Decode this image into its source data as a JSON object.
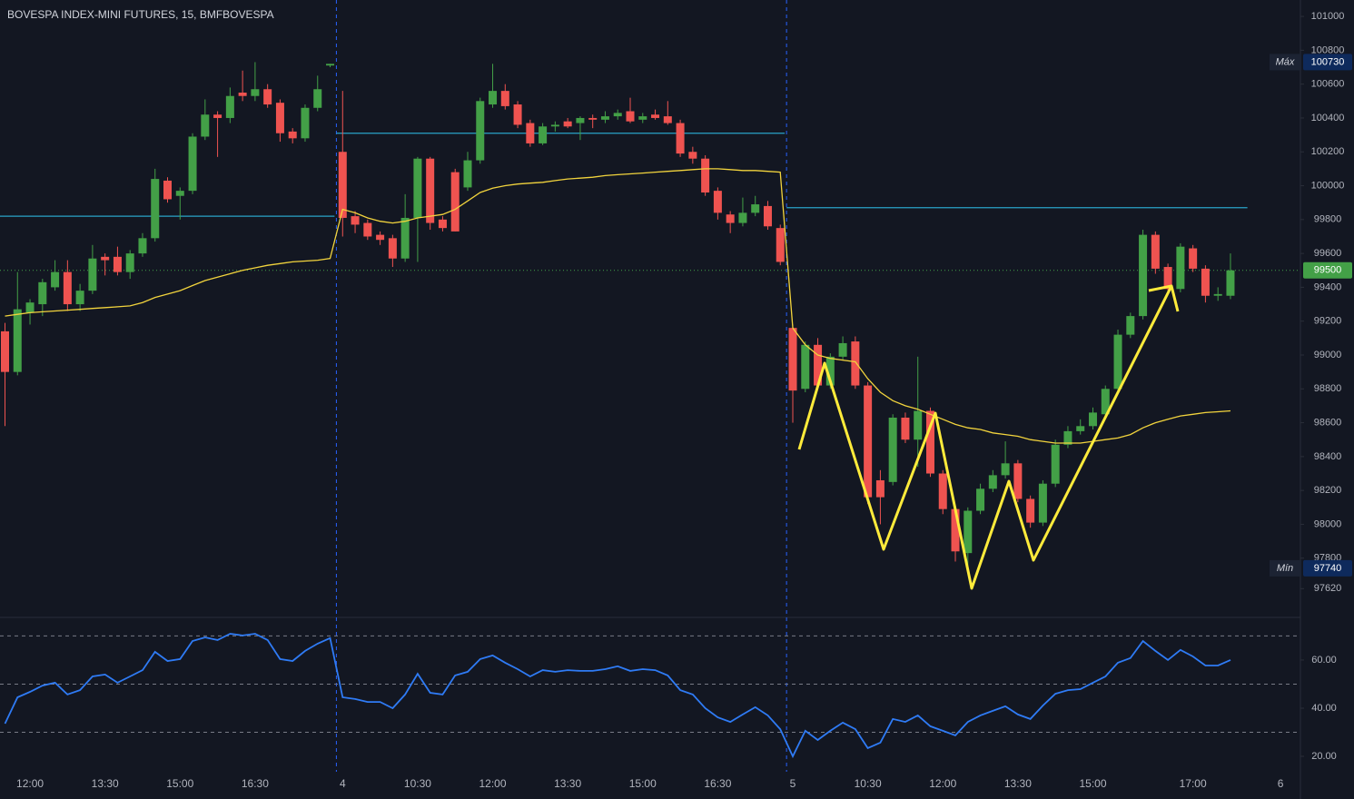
{
  "chart_data": {
    "type": "candlestick",
    "title": "BOVESPA INDEX-MINI FUTURES, 15, BMFBOVESPA",
    "categories": [
      null,
      null,
      "12:00",
      null,
      null,
      null,
      null,
      null,
      "13:30",
      null,
      null,
      null,
      null,
      null,
      "15:00",
      null,
      null,
      null,
      null,
      null,
      "16:30",
      null,
      null,
      null,
      null,
      null,
      null,
      "4",
      null,
      null,
      null,
      null,
      null,
      "10:30",
      null,
      null,
      null,
      null,
      null,
      "12:00",
      null,
      null,
      null,
      null,
      null,
      "13:30",
      null,
      null,
      null,
      null,
      null,
      "15:00",
      null,
      null,
      null,
      null,
      null,
      "16:30",
      null,
      null,
      null,
      null,
      null,
      "5",
      null,
      null,
      null,
      null,
      null,
      "10:30",
      null,
      null,
      null,
      null,
      null,
      "12:00",
      null,
      null,
      null,
      null,
      null,
      "13:30",
      null,
      null,
      null,
      null,
      null,
      "15:00",
      null,
      null,
      null,
      null,
      null,
      null,
      null,
      "17:00",
      null,
      null,
      null,
      null,
      null,
      null,
      "6"
    ],
    "open": [
      99140,
      98900,
      99250,
      99300,
      99400,
      99490,
      99300,
      99380,
      99580,
      99580,
      99490,
      99600,
      99690,
      100030,
      99940,
      99970,
      100290,
      100420,
      100400,
      100550,
      100530,
      100570,
      100490,
      100320,
      100280,
      100460,
      100710,
      100200,
      99820,
      99780,
      99710,
      99690,
      99570,
      99810,
      100160,
      99800,
      100080,
      99990,
      100150,
      100480,
      100560,
      100480,
      100370,
      100250,
      100350,
      100380,
      100370,
      100400,
      100390,
      100410,
      100440,
      100390,
      100420,
      100410,
      100370,
      100200,
      100160,
      99970,
      99830,
      99780,
      99840,
      99880,
      99750,
      99160,
      98800,
      99060,
      98820,
      98990,
      99080,
      98820,
      98260,
      98250,
      98630,
      98500,
      98670,
      98300,
      98090,
      97830,
      98080,
      98210,
      98290,
      98360,
      98150,
      98010,
      98240,
      98470,
      98550,
      98580,
      98650,
      98800,
      99120,
      99230,
      99710,
      99520,
      99390,
      99630,
      99510,
      99350,
      99350,
      null,
      null,
      null,
      null
    ],
    "high": [
      99190,
      99490,
      99330,
      99450,
      99560,
      99560,
      99420,
      99650,
      99600,
      99640,
      99620,
      99720,
      100100,
      100050,
      99990,
      100310,
      100510,
      100440,
      100580,
      100680,
      100730,
      100600,
      100510,
      100340,
      100480,
      100650,
      100720,
      100560,
      99850,
      99800,
      99730,
      99710,
      99950,
      100170,
      100170,
      99820,
      100100,
      100200,
      100520,
      100720,
      100600,
      100500,
      100390,
      100370,
      100380,
      100400,
      100410,
      100420,
      100440,
      100450,
      100520,
      100430,
      100450,
      100500,
      100390,
      100230,
      100180,
      99990,
      99850,
      99930,
      99940,
      99910,
      99770,
      99180,
      99080,
      99100,
      99010,
      99110,
      99110,
      98840,
      98320,
      98650,
      98660,
      98990,
      98690,
      98320,
      98110,
      98100,
      98240,
      98320,
      98490,
      98380,
      98170,
      98260,
      98500,
      98580,
      98620,
      98690,
      98820,
      99150,
      99250,
      99740,
      99730,
      99540,
      99660,
      99650,
      99530,
      99400,
      99600,
      null,
      null,
      null,
      null
    ],
    "low": [
      98580,
      98880,
      99180,
      99230,
      99380,
      99260,
      99260,
      99360,
      99470,
      99470,
      99450,
      99580,
      99670,
      99900,
      99800,
      99950,
      100270,
      100170,
      100370,
      100500,
      100500,
      100460,
      100260,
      100250,
      100260,
      100440,
      100700,
      99700,
      99720,
      99680,
      99650,
      99520,
      99550,
      99550,
      99740,
      99730,
      99730,
      99970,
      100130,
      100460,
      100450,
      100340,
      100230,
      100240,
      100320,
      100340,
      100270,
      100340,
      100370,
      100390,
      100370,
      100370,
      100390,
      100360,
      100170,
      100130,
      99940,
      99800,
      99720,
      99760,
      99820,
      99740,
      99530,
      98600,
      98780,
      98800,
      98800,
      98970,
      98800,
      98120,
      98000,
      98230,
      98480,
      98340,
      98280,
      98060,
      97780,
      97740,
      98060,
      98190,
      98270,
      98130,
      97980,
      97990,
      98220,
      98450,
      98530,
      98560,
      98630,
      98780,
      99100,
      99210,
      99480,
      99370,
      99370,
      99490,
      99310,
      99320,
      99330,
      null,
      null,
      null,
      null
    ],
    "close": [
      98900,
      99270,
      99310,
      99430,
      99490,
      99300,
      99380,
      99570,
      99560,
      99490,
      99600,
      99690,
      100040,
      99920,
      99970,
      100290,
      100420,
      100400,
      100530,
      100530,
      100570,
      100480,
      100310,
      100280,
      100460,
      100570,
      100720,
      99810,
      99770,
      99700,
      99680,
      99570,
      99810,
      100160,
      99780,
      99750,
      99730,
      100150,
      100500,
      100560,
      100470,
      100360,
      100250,
      100350,
      100360,
      100350,
      100400,
      100390,
      100410,
      100430,
      100380,
      100410,
      100400,
      100370,
      100190,
      100160,
      99960,
      99840,
      99780,
      99840,
      99890,
      99760,
      99550,
      98790,
      99060,
      98820,
      98990,
      99070,
      98820,
      98160,
      98160,
      98630,
      98500,
      98670,
      98300,
      98090,
      97840,
      98080,
      98210,
      98290,
      98360,
      98150,
      98010,
      98240,
      98470,
      98550,
      98580,
      98660,
      98800,
      99120,
      99230,
      99710,
      99510,
      99390,
      99640,
      99510,
      99350,
      99360,
      99500,
      null,
      null,
      null,
      null
    ],
    "up_color": "#43a047",
    "down_color": "#ef5350",
    "series": [
      {
        "color": "#f2d43d",
        "values": [
          99230,
          99240,
          99250,
          99255,
          99260,
          99265,
          99270,
          99275,
          99280,
          99285,
          99290,
          99310,
          99340,
          99360,
          99380,
          99410,
          99440,
          99460,
          99480,
          99500,
          99515,
          99530,
          99540,
          99550,
          99555,
          99560,
          99570,
          99860,
          99840,
          99810,
          99790,
          99780,
          99790,
          99810,
          99820,
          99830,
          99860,
          99910,
          99960,
          99985,
          100000,
          100010,
          100015,
          100020,
          100030,
          100040,
          100045,
          100050,
          100060,
          100065,
          100070,
          100075,
          100080,
          100085,
          100090,
          100095,
          100100,
          100100,
          100095,
          100090,
          100090,
          100085,
          100080,
          99160,
          99060,
          99000,
          98980,
          98970,
          98960,
          98860,
          98780,
          98730,
          98700,
          98680,
          98650,
          98620,
          98590,
          98570,
          98560,
          98540,
          98530,
          98520,
          98500,
          98490,
          98480,
          98480,
          98480,
          98490,
          98500,
          98510,
          98530,
          98570,
          98600,
          98620,
          98640,
          98650,
          98660,
          98665,
          98670,
          null,
          null,
          null,
          null
        ]
      }
    ],
    "levels": [
      99820,
      100310,
      99870
    ],
    "level_color": "#2aa3c8",
    "ylim": [
      97450,
      101097
    ],
    "yticks": [
      101000,
      100800,
      100600,
      100400,
      100200,
      100000,
      99800,
      99600,
      99400,
      99200,
      99000,
      98800,
      98600,
      98400,
      98200,
      98000,
      97800,
      97620
    ],
    "grid": false,
    "max_label": "Máx",
    "max_value": 100730,
    "min_label": "Mín",
    "min_value": 97740,
    "last_value": 99500,
    "indicator": {
      "type": "line",
      "color": "#2f7bf5",
      "values": [
        33.6,
        44.5,
        46.8,
        49.4,
        50.6,
        45.7,
        47.5,
        53.2,
        54.0,
        50.6,
        53.2,
        55.8,
        63.4,
        59.6,
        60.4,
        67.9,
        69.4,
        68.3,
        70.9,
        70.2,
        70.9,
        68.3,
        60.4,
        59.6,
        63.8,
        66.8,
        69.1,
        44.5,
        43.8,
        42.6,
        42.6,
        40.0,
        45.7,
        54.3,
        46.4,
        45.7,
        53.6,
        55.1,
        60.4,
        61.9,
        58.9,
        56.2,
        53.2,
        55.8,
        55.1,
        55.8,
        55.5,
        55.5,
        56.2,
        57.4,
        55.5,
        56.2,
        55.8,
        53.6,
        47.5,
        45.7,
        40.0,
        36.2,
        34.3,
        37.4,
        40.4,
        37.0,
        31.3,
        20.0,
        30.6,
        26.8,
        30.6,
        34.0,
        31.3,
        23.4,
        25.7,
        35.5,
        34.3,
        37.0,
        32.5,
        30.6,
        28.7,
        34.3,
        37.0,
        38.9,
        40.8,
        37.4,
        35.5,
        41.1,
        46.0,
        47.5,
        47.9,
        50.6,
        53.2,
        58.9,
        60.8,
        67.9,
        63.8,
        60.0,
        64.2,
        61.5,
        57.7,
        57.7,
        60.0,
        null,
        null,
        null,
        null
      ],
      "ylim": [
        13.6,
        77.7
      ],
      "yticks": [
        {
          "value": 60,
          "label": "60.00"
        },
        {
          "value": 40,
          "label": "40.00"
        },
        {
          "value": 20,
          "label": "20.00"
        }
      ],
      "bands": [
        70,
        50,
        30
      ]
    }
  }
}
